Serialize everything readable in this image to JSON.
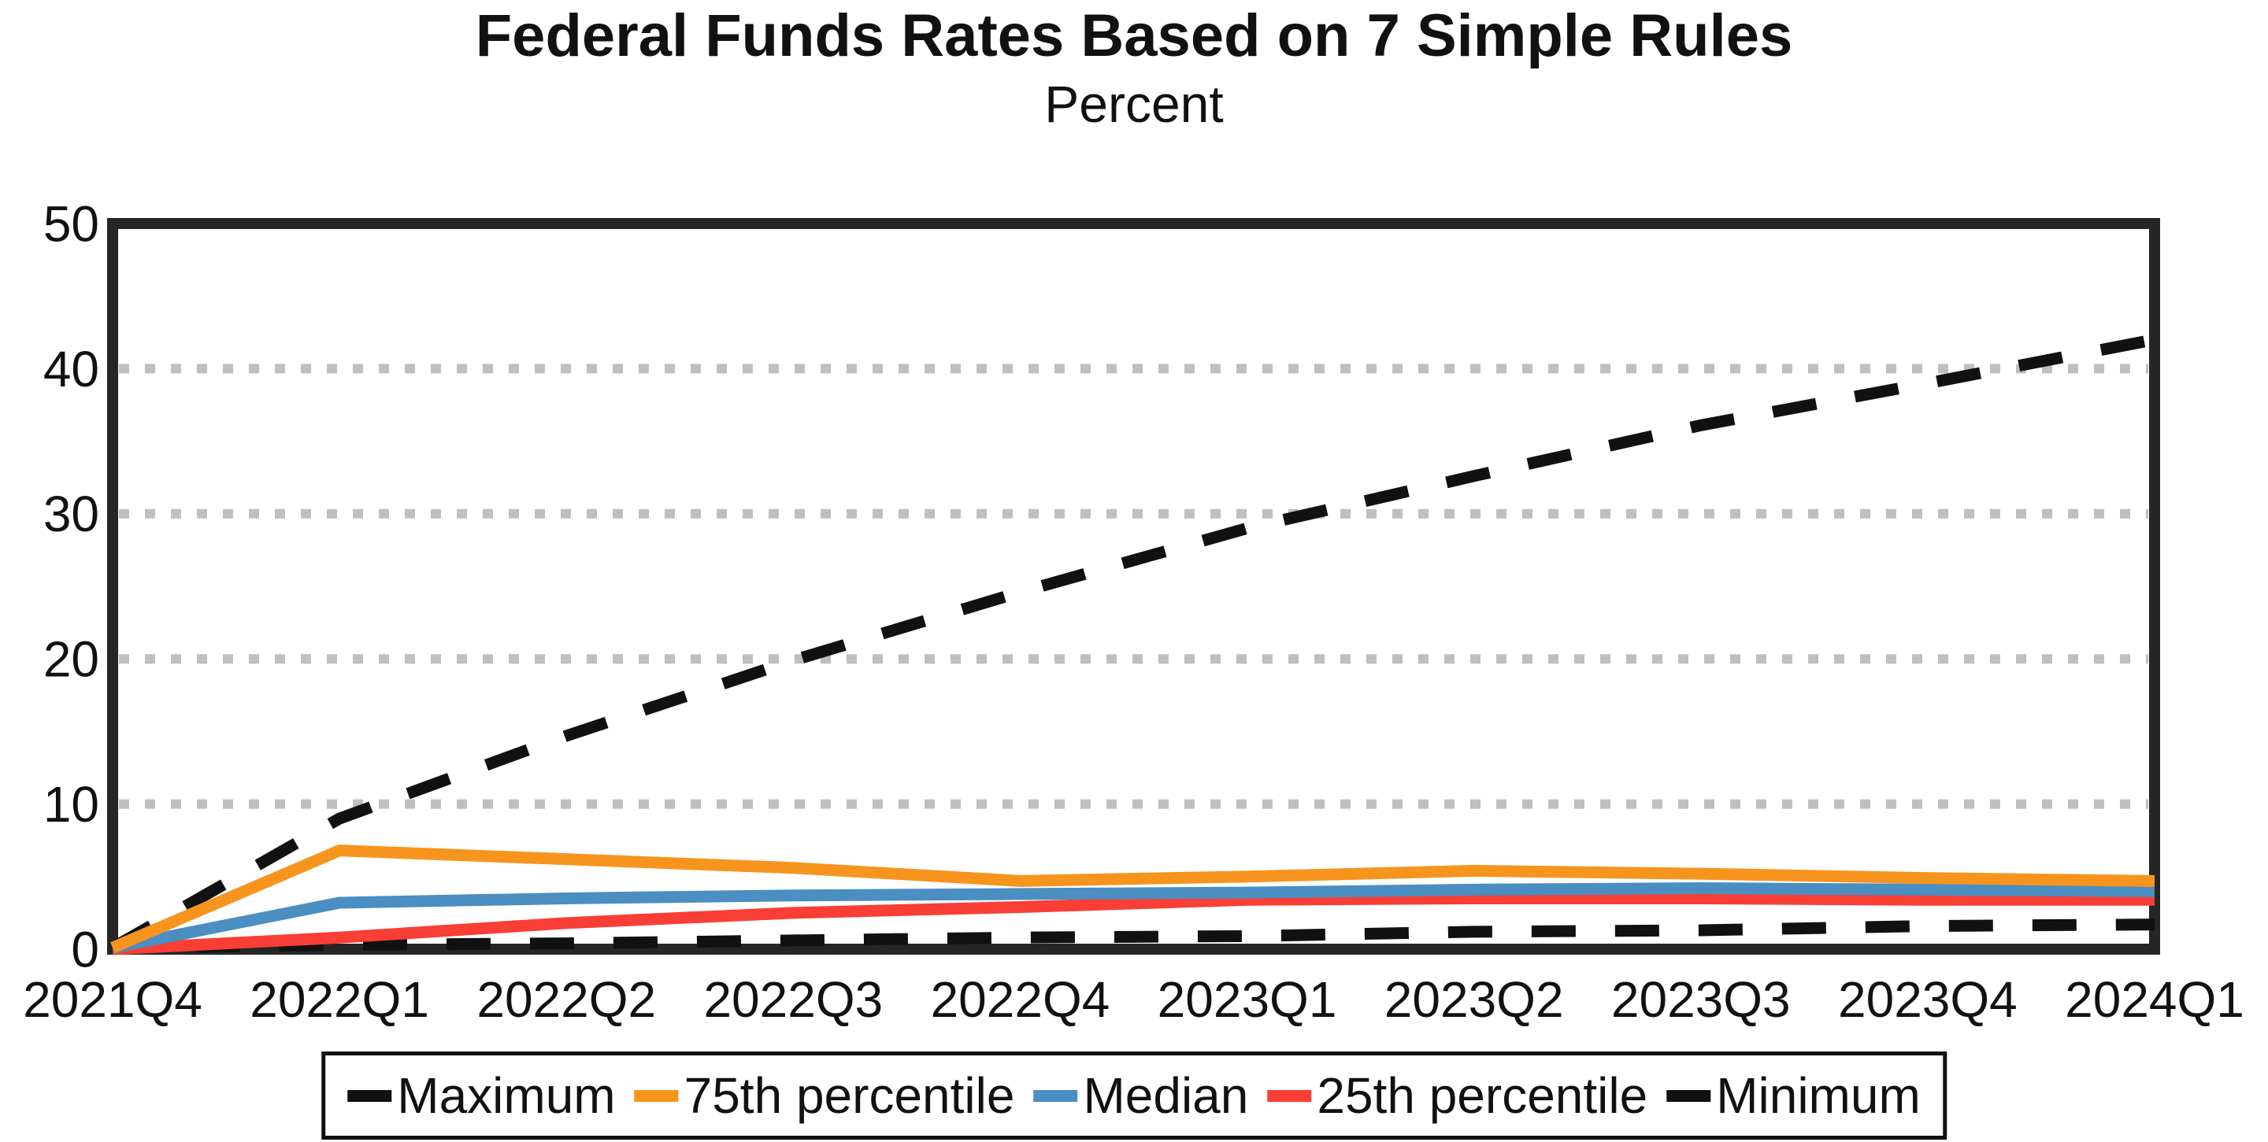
{
  "chart_data": {
    "type": "line",
    "title": "Federal Funds Rates Based on 7 Simple Rules",
    "subtitle": "Percent",
    "categories": [
      "2021Q4",
      "2022Q1",
      "2022Q2",
      "2022Q3",
      "2022Q4",
      "2023Q1",
      "2023Q2",
      "2023Q3",
      "2023Q4",
      "2024Q1"
    ],
    "y_ticks": [
      0,
      10,
      20,
      30,
      40,
      50
    ],
    "ylim": [
      0,
      50
    ],
    "grid": {
      "horizontal_dotted_at": [
        10,
        20,
        30,
        40
      ],
      "color": "#bfbfbf"
    },
    "axis_color": "#262626",
    "legend_position": "bottom",
    "series": [
      {
        "name": "Maximum",
        "color": "#111111",
        "style": "dashed",
        "values": [
          0.1,
          9.0,
          14.7,
          19.9,
          24.6,
          29.0,
          32.6,
          36.1,
          39.0,
          42.0
        ]
      },
      {
        "name": "75th percentile",
        "color": "#F7941E",
        "style": "solid",
        "values": [
          0.1,
          6.8,
          6.2,
          5.6,
          4.7,
          5.0,
          5.4,
          5.2,
          4.9,
          4.7
        ]
      },
      {
        "name": "Median",
        "color": "#4A8EC2",
        "style": "solid",
        "values": [
          0.1,
          3.2,
          3.5,
          3.7,
          3.8,
          3.9,
          4.1,
          4.2,
          4.1,
          4.0
        ]
      },
      {
        "name": "25th percentile",
        "color": "#F93E35",
        "style": "solid",
        "values": [
          0.0,
          0.8,
          1.8,
          2.5,
          2.9,
          3.4,
          3.5,
          3.5,
          3.4,
          3.4
        ]
      },
      {
        "name": "Minimum",
        "color": "#111111",
        "style": "dashed",
        "values": [
          0.1,
          0.3,
          0.4,
          0.6,
          0.8,
          0.9,
          1.2,
          1.3,
          1.6,
          1.7
        ]
      }
    ]
  }
}
